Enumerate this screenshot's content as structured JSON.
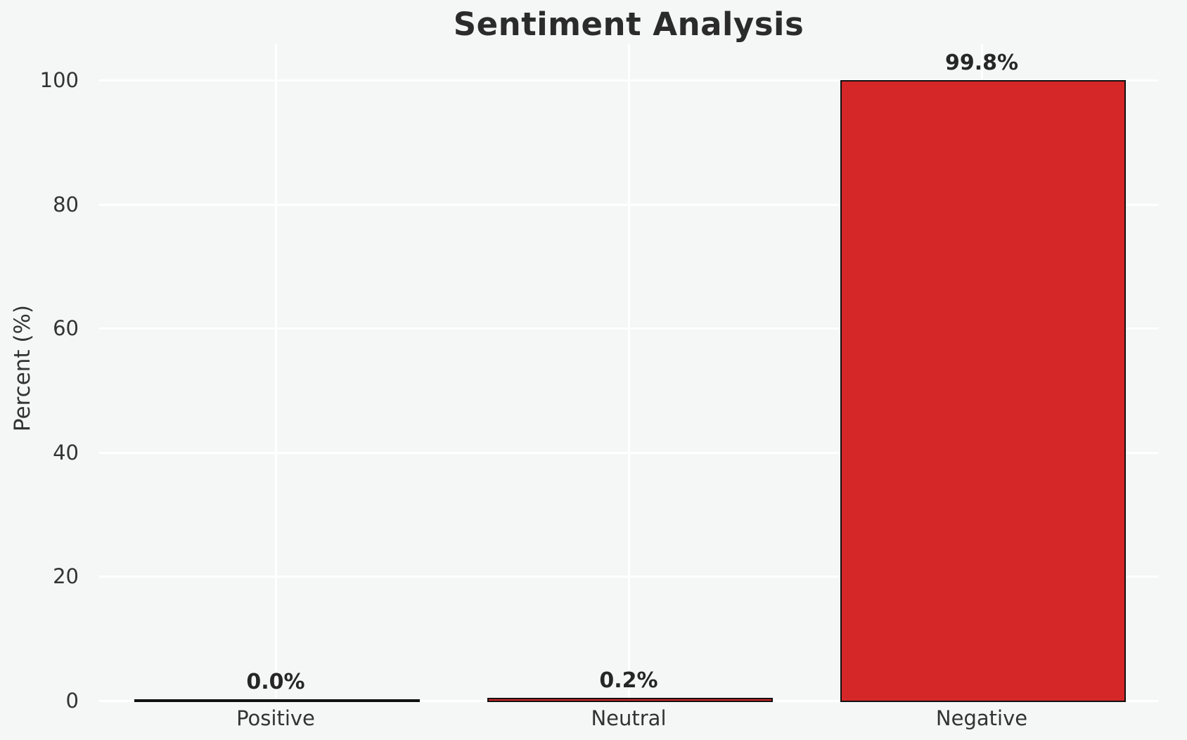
{
  "chart_data": {
    "type": "bar",
    "title": "Sentiment Analysis",
    "xlabel": "",
    "ylabel": "Percent (%)",
    "categories": [
      "Positive",
      "Neutral",
      "Negative"
    ],
    "values": [
      0.0,
      0.2,
      99.8
    ],
    "bar_labels": [
      "0.0%",
      "0.2%",
      "99.8%"
    ],
    "yticks": [
      0,
      20,
      40,
      60,
      80,
      100
    ],
    "ylim": [
      0,
      105.8
    ],
    "grid": true,
    "legend": false,
    "colors": {
      "bar_fill": "#d62728",
      "bar_edge": "#111111",
      "background": "#f5f6f6",
      "gridline": "#ffffff",
      "title_text": "#2b2b2b",
      "tick_text": "#333333",
      "value_label_text": "#262626"
    }
  }
}
